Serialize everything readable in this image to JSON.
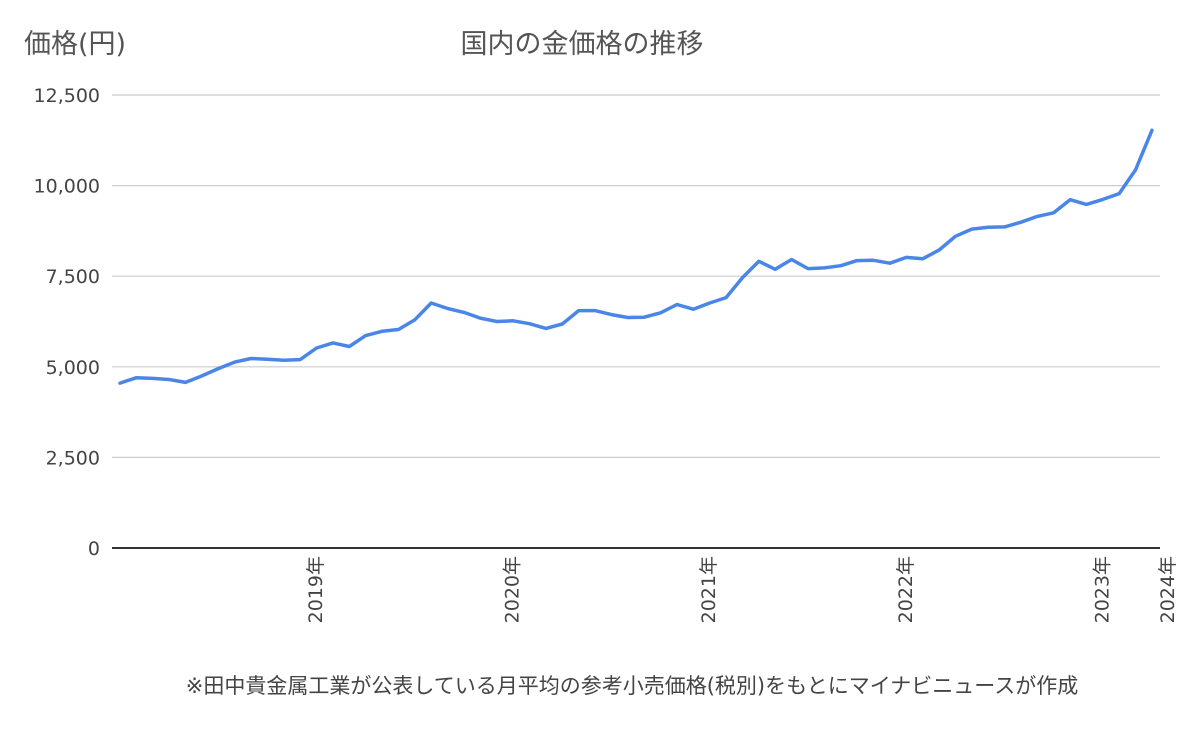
{
  "chart_data": {
    "type": "line",
    "title": "国内の金価格の推移",
    "ylabel": "価格(円)",
    "xlabel": "",
    "ylim": [
      0,
      12500
    ],
    "yticks": [
      "0",
      "2,500",
      "5,000",
      "7,500",
      "10,000",
      "12,500"
    ],
    "ytick_values": [
      0,
      2500,
      5000,
      7500,
      10000,
      12500
    ],
    "grid": true,
    "line_color": "#4a86e8",
    "xtick_labels": [
      {
        "label": "2019年",
        "index": 12
      },
      {
        "label": "2020年",
        "index": 24
      },
      {
        "label": "2021年",
        "index": 36
      },
      {
        "label": "2022年",
        "index": 48
      },
      {
        "label": "2023年",
        "index": 60
      },
      {
        "label": "2024年",
        "index": 64
      }
    ],
    "series": [
      {
        "values": [
          4550,
          4700,
          4680,
          4650,
          4570,
          4750,
          4950,
          5130,
          5230,
          5210,
          5180,
          5200,
          5520,
          5660,
          5560,
          5860,
          5980,
          6030,
          6300,
          6760,
          6610,
          6500,
          6340,
          6250,
          6270,
          6190,
          6060,
          6180,
          6550,
          6550,
          6440,
          6360,
          6370,
          6490,
          6720,
          6590,
          6760,
          6910,
          7460,
          7910,
          7690,
          7960,
          7710,
          7730,
          7790,
          7930,
          7940,
          7860,
          8020,
          7980,
          8220,
          8600,
          8800,
          8850,
          8860,
          8990,
          9150,
          9250,
          9610,
          9480,
          9620,
          9780,
          10440,
          11530
        ]
      }
    ]
  },
  "footnote": "※田中貴金属工業が公表している月平均の参考小売価格(税別)をもとにマイナビニュースが作成"
}
